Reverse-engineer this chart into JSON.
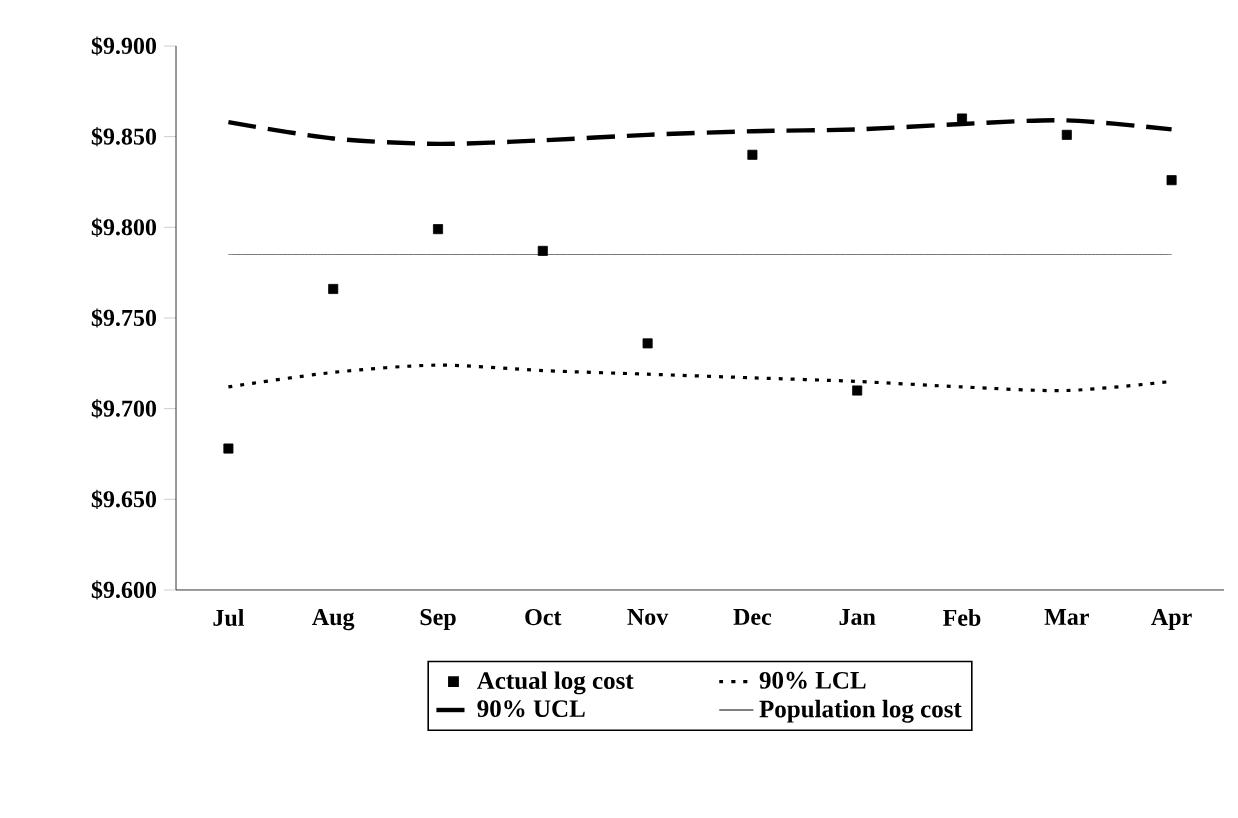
{
  "chart_data": {
    "type": "line",
    "categories": [
      "Jul",
      "Aug",
      "Sep",
      "Oct",
      "Nov",
      "Dec",
      "Jan",
      "Feb",
      "Mar",
      "Apr"
    ],
    "series": [
      {
        "name": "Actual log cost",
        "type": "scatter",
        "marker": "square",
        "color": "#000000",
        "values": [
          9.678,
          9.766,
          9.799,
          9.787,
          9.736,
          9.84,
          9.71,
          9.86,
          9.851,
          9.826
        ]
      },
      {
        "name": "90% LCL",
        "line_style": "dotted",
        "color": "#000000",
        "values": [
          9.712,
          9.72,
          9.724,
          9.721,
          9.719,
          9.717,
          9.715,
          9.712,
          9.71,
          9.715
        ]
      },
      {
        "name": "90% UCL",
        "line_style": "dashed",
        "color": "#000000",
        "values": [
          9.858,
          9.849,
          9.846,
          9.848,
          9.851,
          9.853,
          9.854,
          9.857,
          9.859,
          9.854
        ]
      },
      {
        "name": "Population log cost",
        "line_style": "solid",
        "color": "#555555",
        "values": [
          9.785,
          9.785,
          9.785,
          9.785,
          9.785,
          9.785,
          9.785,
          9.785,
          9.785,
          9.785
        ]
      }
    ],
    "ylim": [
      9.6,
      9.9
    ],
    "yticks": [
      {
        "value": 9.6,
        "label": "$9.600"
      },
      {
        "value": 9.65,
        "label": "$9.650"
      },
      {
        "value": 9.7,
        "label": "$9.700"
      },
      {
        "value": 9.75,
        "label": "$9.750"
      },
      {
        "value": 9.8,
        "label": "$9.800"
      },
      {
        "value": 9.85,
        "label": "$9.850"
      },
      {
        "value": 9.9,
        "label": "$9.900"
      }
    ],
    "grid": false,
    "legend": "bottom"
  }
}
